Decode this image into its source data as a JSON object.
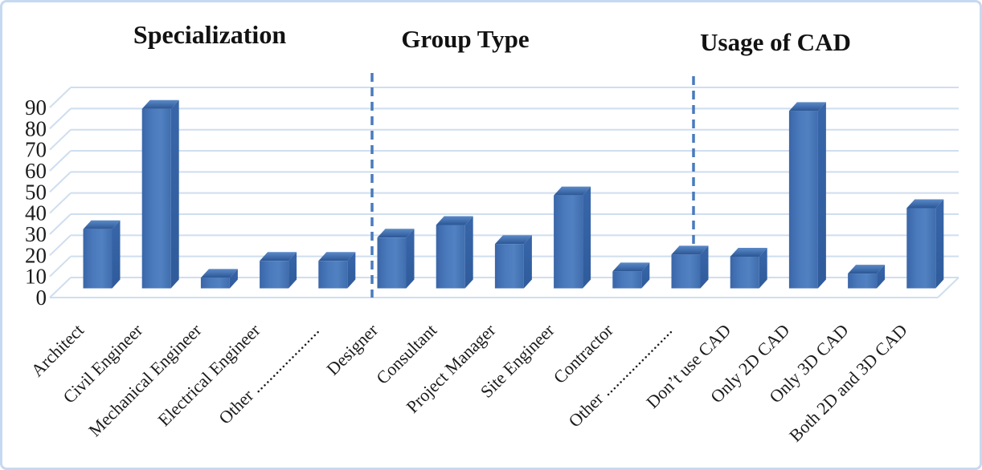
{
  "figure": {
    "background": "#ffffff",
    "border_color": "#c6d9f0"
  },
  "chart_data": {
    "type": "bar",
    "style": "3d-column",
    "title": "",
    "sections": [
      {
        "title": "Specialization",
        "categories": [
          "Architect",
          "Civil Engineer",
          "Mechanical Engineer",
          "Electrical Engineer",
          "Other ...................."
        ],
        "values": [
          28,
          85,
          5,
          13,
          13
        ]
      },
      {
        "title": "Group Type",
        "categories": [
          "Designer",
          "Consultant",
          "Project Manager",
          "Site Engineer",
          "Contractor",
          "Other ....................."
        ],
        "values": [
          24,
          30,
          21,
          44,
          8,
          16
        ]
      },
      {
        "title": "Usage of CAD",
        "categories": [
          "Don’t use CAD",
          "Only 2D CAD",
          "Only 3D CAD",
          "Both 2D and 3D CAD"
        ],
        "values": [
          15,
          84,
          7,
          38
        ]
      }
    ],
    "xlabel": "",
    "ylabel": "",
    "yticks": [
      0,
      10,
      20,
      30,
      40,
      50,
      60,
      70,
      80,
      90
    ],
    "ylim": [
      0,
      90
    ],
    "grid": true,
    "legend": false,
    "x_label_rotation_deg": 45,
    "colors": {
      "bar_front": "#4a7abc",
      "bar_front_edge": "#3a66a8",
      "bar_top_back": "#5b8ac8",
      "bar_top_front": "#2b5695",
      "bar_side": "#2f5b9b",
      "gridline": "#cfdeef",
      "section_divider": "#4a7abd",
      "text": "#1b1b1b"
    }
  }
}
